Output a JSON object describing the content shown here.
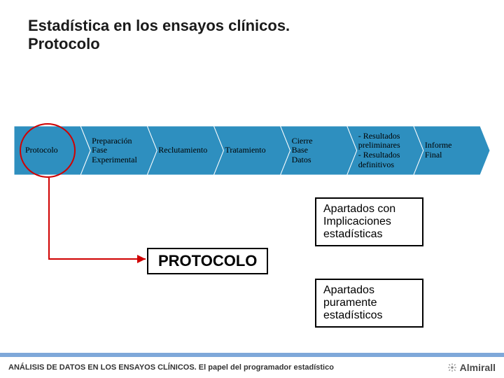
{
  "title_line1": "Estadística en los ensayos clínicos.",
  "title_line2": "Protocolo",
  "flow": {
    "type": "flowchart",
    "chevron_fill": "#2e8fbf",
    "chevron_stroke": "#ffffff",
    "label_color": "#000000",
    "label_font": "Times New Roman",
    "label_fontsize": 12,
    "steps": [
      {
        "id": "protocolo",
        "label": "Protocolo"
      },
      {
        "id": "prep",
        "label": "Preparación\nFase\nExperimental"
      },
      {
        "id": "reclut",
        "label": "Reclutamiento"
      },
      {
        "id": "trat",
        "label": "Tratamiento"
      },
      {
        "id": "cierre",
        "label": "Cierre\nBase\nDatos"
      },
      {
        "id": "result",
        "label": "- Resultados\n   preliminares\n- Resultados\n   definitivos"
      },
      {
        "id": "informe",
        "label": "Informe\nFinal"
      }
    ],
    "highlight": {
      "target_step": 0,
      "circle_color": "#d00000",
      "circle_stroke_width": 2
    }
  },
  "connector": {
    "color": "#d00000",
    "stroke_width": 2
  },
  "callouts": {
    "box1": {
      "text_line1": "Apartados con",
      "text_line2": "Implicaciones",
      "text_line3": "estadísticas"
    },
    "protocolo_box": {
      "text": "PROTOCOLO"
    },
    "box2": {
      "text_line1": "Apartados",
      "text_line2": "puramente",
      "text_line3": "estadísticos"
    }
  },
  "footer": {
    "text": "ANÁLISIS DE DATOS EN LOS ENSAYOS CLÍNICOS. El papel del programador estadístico",
    "accent_color": "#7fa8d9",
    "brand": "Almirall"
  }
}
